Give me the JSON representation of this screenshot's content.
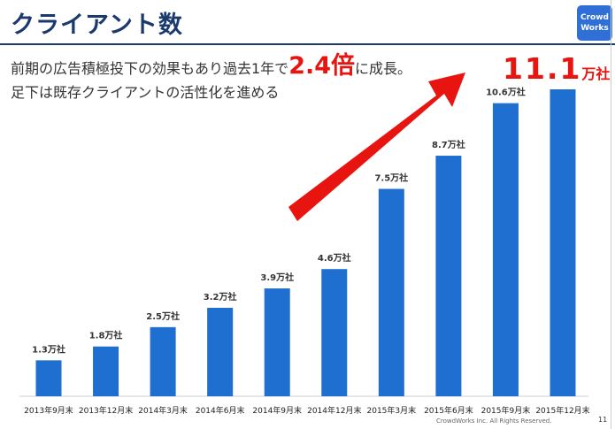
{
  "header": {
    "title": "クライアント数",
    "logo_line1": "Crowd",
    "logo_line2": "Works"
  },
  "subtitle": {
    "line1_before": "前期の広告積極投下の効果もあり過去1年で",
    "line1_emph": "2.4倍",
    "line1_after": "に成長。",
    "line2": "足下は既存クライアントの活性化を進める"
  },
  "highlight": {
    "value": "11.1",
    "unit": "万社"
  },
  "footer": {
    "copyright": "CrowdWorks Inc. All Rights Reserved.",
    "page_number": "11"
  },
  "colors": {
    "bar": "#1f6fd1",
    "accent": "#e8140f",
    "title": "#1a3a6e"
  },
  "chart_data": {
    "type": "bar",
    "categories": [
      "2013年9月末",
      "2013年12月末",
      "2014年3月末",
      "2014年6月末",
      "2014年9月末",
      "2014年12月末",
      "2015年3月末",
      "2015年6月末",
      "2015年9月末",
      "2015年12月末"
    ],
    "values": [
      1.3,
      1.8,
      2.5,
      3.2,
      3.9,
      4.6,
      7.5,
      8.7,
      10.6,
      11.1
    ],
    "data_labels": [
      "1.3万社",
      "1.8万社",
      "2.5万社",
      "3.2万社",
      "3.9万社",
      "4.6万社",
      "7.5万社",
      "8.7万社",
      "10.6万社",
      ""
    ],
    "unit": "万社",
    "title": "",
    "xlabel": "",
    "ylabel": "",
    "ylim": [
      0,
      11.1
    ],
    "grid": false
  }
}
